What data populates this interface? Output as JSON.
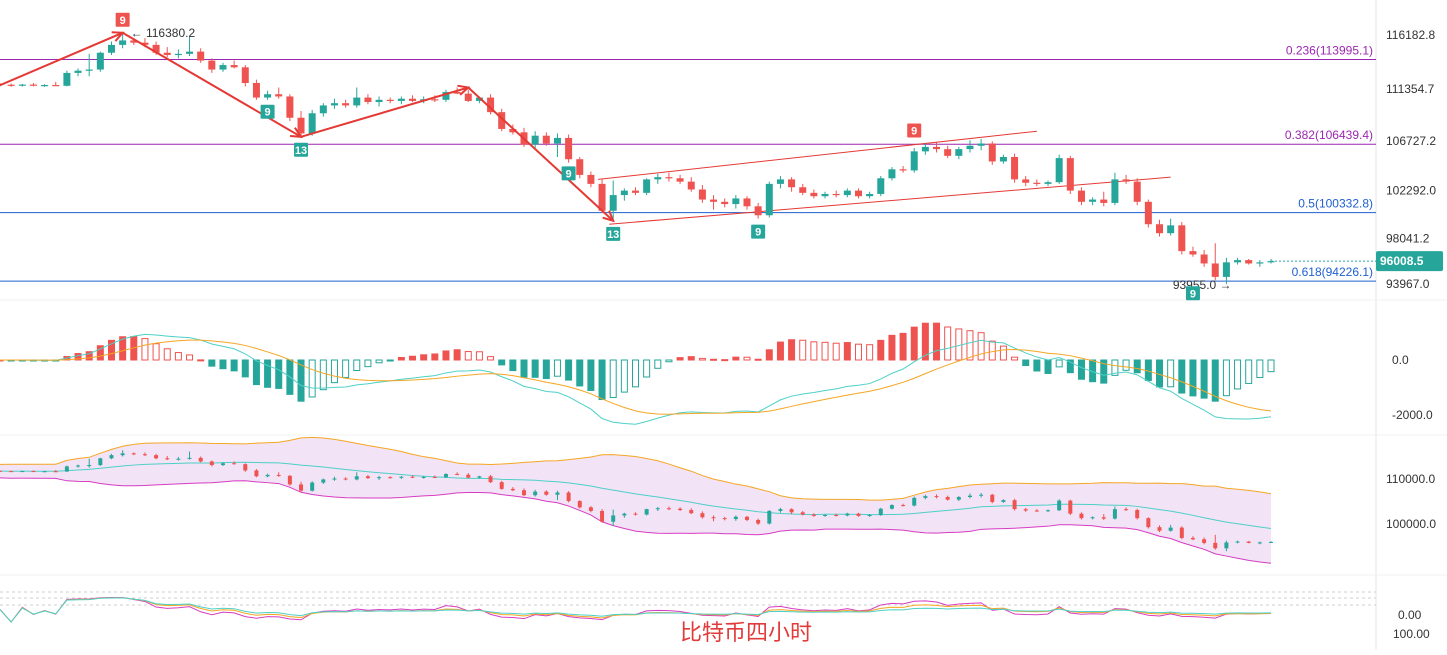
{
  "chart_data": {
    "type": "candlestick",
    "watermark": "比特币四小时",
    "colors": {
      "up": "#26a69a",
      "down": "#ef5350",
      "fib_purple": "#9c27b0",
      "fib_blue": "#1e5fd0",
      "pen": "#e53935",
      "channel": "#e53935"
    },
    "price_axis_ticks": [
      "116182.8",
      "111354.7",
      "106727.2",
      "102292.0",
      "98041.2",
      "93967.0"
    ],
    "fib_levels": [
      {
        "label": "0.236(113995.1)",
        "price": 113995.1,
        "color": "#9c27b0"
      },
      {
        "label": "0.382(106439.4)",
        "price": 106439.4,
        "color": "#9c27b0"
      },
      {
        "label": "0.5(100332.8)",
        "price": 100332.8,
        "color": "#1e5fd0"
      },
      {
        "label": "0.618(94226.1)",
        "price": 94226.1,
        "color": "#1e5fd0"
      }
    ],
    "high_label": "116380.2",
    "low_label": "93955.0",
    "last_price": "96008.5",
    "td_markers": [
      "9",
      "9",
      "13",
      "9",
      "13",
      "9",
      "9",
      "9"
    ],
    "macd_axis_ticks": [
      "0.0",
      "-2000.0"
    ],
    "boll_axis_ticks": [
      "110000.0",
      "100000.0"
    ],
    "rsi_axis_ticks": [
      "0.00",
      "100.00"
    ],
    "candles": [
      [
        111820,
        111900,
        111600,
        111750
      ],
      [
        111750,
        111850,
        111550,
        111700
      ],
      [
        111700,
        111820,
        111580,
        111760
      ],
      [
        111760,
        111900,
        111600,
        111680
      ],
      [
        111680,
        111800,
        111560,
        111720
      ],
      [
        111720,
        112000,
        111650,
        111650
      ],
      [
        111650,
        113000,
        111600,
        112800
      ],
      [
        112800,
        113200,
        112500,
        113000
      ],
      [
        113000,
        114500,
        112500,
        113100
      ],
      [
        113100,
        114700,
        112900,
        114600
      ],
      [
        114600,
        115600,
        114400,
        115300
      ],
      [
        115300,
        116380,
        115000,
        115700
      ],
      [
        115700,
        115900,
        115300,
        115500
      ],
      [
        115500,
        115900,
        115100,
        115300
      ],
      [
        115300,
        115600,
        114400,
        114600
      ],
      [
        114600,
        115100,
        114200,
        114400
      ],
      [
        114400,
        114900,
        114100,
        114500
      ],
      [
        114500,
        116100,
        114300,
        114700
      ],
      [
        114700,
        115000,
        113700,
        113900
      ],
      [
        113900,
        114100,
        112800,
        113100
      ],
      [
        113100,
        113700,
        112900,
        113500
      ],
      [
        113500,
        113900,
        113200,
        113300
      ],
      [
        113300,
        113500,
        111600,
        111900
      ],
      [
        111900,
        112200,
        110400,
        110600
      ],
      [
        110600,
        111200,
        110400,
        110900
      ],
      [
        110900,
        111500,
        110500,
        110700
      ],
      [
        110700,
        110900,
        108500,
        108800
      ],
      [
        108800,
        109400,
        107100,
        107400
      ],
      [
        107400,
        109500,
        107200,
        109200
      ],
      [
        109200,
        110100,
        108900,
        109900
      ],
      [
        109900,
        110500,
        109600,
        110100
      ],
      [
        110100,
        110400,
        109700,
        109900
      ],
      [
        109900,
        111500,
        109700,
        110600
      ],
      [
        110600,
        110900,
        110000,
        110200
      ],
      [
        110200,
        110700,
        109800,
        110400
      ],
      [
        110400,
        110600,
        110100,
        110300
      ],
      [
        110300,
        110700,
        110000,
        110500
      ],
      [
        110500,
        110800,
        110200,
        110300
      ],
      [
        110300,
        110700,
        110100,
        110450
      ],
      [
        110450,
        110800,
        110200,
        110400
      ],
      [
        110400,
        111300,
        110200,
        111100
      ],
      [
        111100,
        111500,
        110900,
        110950
      ],
      [
        110950,
        111300,
        110200,
        110300
      ],
      [
        110300,
        110700,
        110100,
        110600
      ],
      [
        110600,
        110900,
        109100,
        109300
      ],
      [
        109300,
        109600,
        107600,
        107800
      ],
      [
        107800,
        108200,
        107300,
        107500
      ],
      [
        107500,
        107900,
        106200,
        106400
      ],
      [
        106400,
        107600,
        106100,
        107200
      ],
      [
        107200,
        107500,
        106300,
        106500
      ],
      [
        106500,
        107400,
        105300,
        107000
      ],
      [
        107000,
        107300,
        104800,
        105100
      ],
      [
        105100,
        105300,
        103400,
        103700
      ],
      [
        103700,
        104000,
        102600,
        102900
      ],
      [
        102900,
        103300,
        100300,
        100500
      ],
      [
        100500,
        103200,
        99600,
        101900
      ],
      [
        101900,
        102500,
        101400,
        102300
      ],
      [
        102300,
        102600,
        101900,
        102100
      ],
      [
        102100,
        103400,
        101900,
        103300
      ],
      [
        103300,
        103800,
        102900,
        103500
      ],
      [
        103500,
        103900,
        103100,
        103400
      ],
      [
        103400,
        103700,
        102900,
        103100
      ],
      [
        103100,
        103500,
        102200,
        102400
      ],
      [
        102400,
        102800,
        101200,
        101500
      ],
      [
        101500,
        101900,
        100600,
        101300
      ],
      [
        101300,
        101600,
        100800,
        101100
      ],
      [
        101100,
        101900,
        100700,
        101600
      ],
      [
        101600,
        101800,
        100600,
        100900
      ],
      [
        100900,
        101200,
        99800,
        100100
      ],
      [
        100100,
        103100,
        99900,
        102900
      ],
      [
        102900,
        103600,
        102500,
        103300
      ],
      [
        103300,
        103500,
        102200,
        102600
      ],
      [
        102600,
        102900,
        101900,
        102100
      ],
      [
        102100,
        102400,
        101600,
        101800
      ],
      [
        101800,
        102200,
        101600,
        102000
      ],
      [
        102000,
        102300,
        101700,
        101900
      ],
      [
        101900,
        102500,
        101700,
        102300
      ],
      [
        102300,
        102500,
        101600,
        101800
      ],
      [
        101800,
        102200,
        101600,
        102000
      ],
      [
        102000,
        103600,
        101800,
        103400
      ],
      [
        103400,
        104400,
        103200,
        104200
      ],
      [
        104200,
        104500,
        103900,
        104100
      ],
      [
        104100,
        106100,
        103900,
        105800
      ],
      [
        105800,
        106500,
        105500,
        106200
      ],
      [
        106200,
        106600,
        105700,
        106000
      ],
      [
        106000,
        106300,
        105200,
        105400
      ],
      [
        105400,
        106200,
        105100,
        106000
      ],
      [
        106000,
        106800,
        105700,
        106300
      ],
      [
        106300,
        106900,
        105900,
        106500
      ],
      [
        106500,
        106700,
        104600,
        104900
      ],
      [
        104900,
        105500,
        104700,
        105300
      ],
      [
        105300,
        105600,
        103000,
        103300
      ],
      [
        103300,
        103600,
        102700,
        103000
      ],
      [
        103000,
        103300,
        102700,
        102900
      ],
      [
        102900,
        103200,
        102700,
        103050
      ],
      [
        103050,
        105500,
        102900,
        105200
      ],
      [
        105200,
        105400,
        102000,
        102300
      ],
      [
        102300,
        102600,
        101000,
        101300
      ],
      [
        101300,
        101700,
        101000,
        101500
      ],
      [
        101500,
        102200,
        100900,
        101200
      ],
      [
        101200,
        103900,
        101000,
        103300
      ],
      [
        103300,
        103700,
        102900,
        103100
      ],
      [
        103100,
        103400,
        101000,
        101300
      ],
      [
        101300,
        101500,
        99000,
        99300
      ],
      [
        99300,
        99700,
        98200,
        98500
      ],
      [
        98500,
        99800,
        98300,
        99200
      ],
      [
        99200,
        99500,
        96600,
        96900
      ],
      [
        96900,
        97300,
        96400,
        96600
      ],
      [
        96600,
        97000,
        95500,
        95800
      ],
      [
        95800,
        97600,
        94300,
        94600
      ],
      [
        94600,
        96300,
        93955,
        95900
      ],
      [
        95900,
        96300,
        95700,
        96100
      ],
      [
        96100,
        96200,
        95700,
        95800
      ],
      [
        95800,
        96100,
        95500,
        95900
      ],
      [
        95900,
        96200,
        95800,
        96008.5
      ]
    ]
  }
}
